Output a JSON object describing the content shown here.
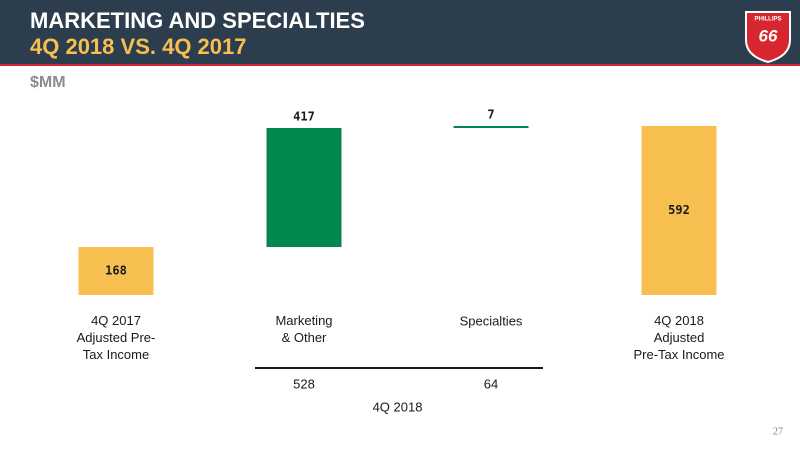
{
  "header": {
    "title": "MARKETING AND SPECIALTIES",
    "subtitle": "4Q 2018 VS. 4Q 2017",
    "logo_text": "PHILLIPS",
    "logo_number": "66"
  },
  "chart_data": {
    "type": "waterfall",
    "unit": "$MM",
    "categories": [
      "4Q 2017\nAdjusted Pre-\nTax Income",
      "Marketing\n& Other",
      "Specialties",
      "4Q 2018\nAdjusted\nPre-Tax Income"
    ],
    "values": [
      168,
      417,
      7,
      592
    ],
    "measure": [
      "absolute",
      "relative",
      "relative",
      "total"
    ],
    "colors": [
      "#f6bf4f",
      "#00874d",
      "#00874d",
      "#f6bf4f"
    ],
    "group": {
      "label": "4Q 2018",
      "values": [
        528,
        64
      ]
    }
  },
  "page_number": "27"
}
